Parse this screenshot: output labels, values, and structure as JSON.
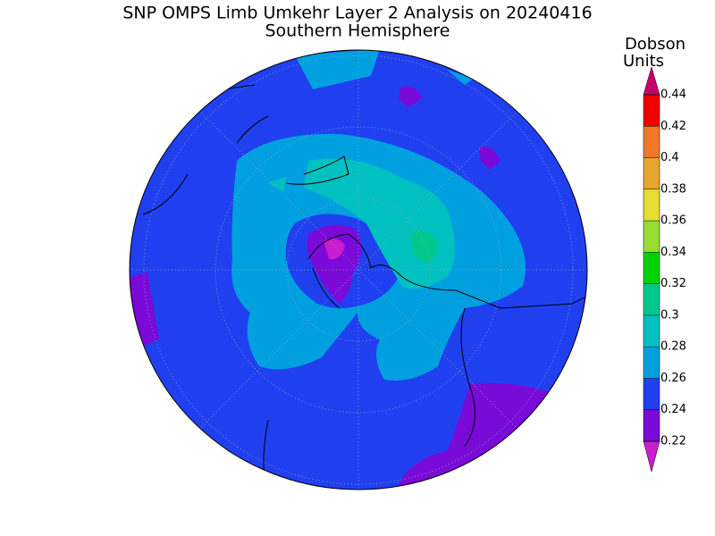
{
  "title": "SNP OMPS Limb Umkehr Layer 2 Analysis on 20240416",
  "subtitle": "Southern Hemisphere",
  "colorbar": {
    "label_lines": [
      "Dobson",
      "Units"
    ],
    "lim": [
      0.22,
      0.44
    ],
    "ticks": [
      0.22,
      0.24,
      0.26,
      0.28,
      0.3,
      0.32,
      0.34,
      0.36,
      0.38,
      0.4,
      0.42,
      0.44
    ],
    "under_color": "#c81ecf",
    "over_color": "#c8006e",
    "colors": [
      "#7a0ad8",
      "#2040f0",
      "#00a0e0",
      "#00c0c0",
      "#00c88c",
      "#00d200",
      "#96dc32",
      "#e6dc32",
      "#e6a530",
      "#f07828",
      "#f00000"
    ]
  }
}
